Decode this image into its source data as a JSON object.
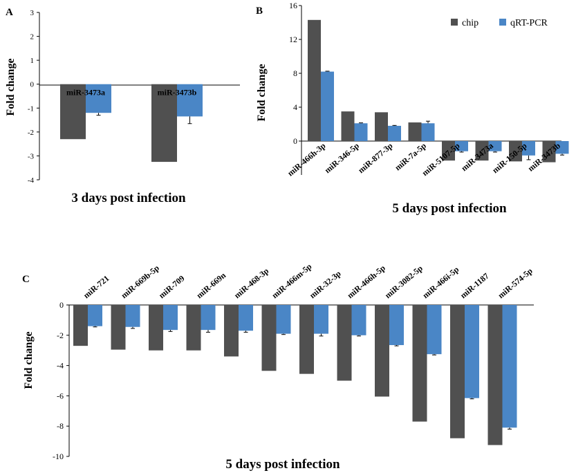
{
  "colors": {
    "chip": "#505050",
    "qrt": "#4a86c6",
    "axis": "#000000"
  },
  "chart_data": [
    {
      "panel": "A",
      "type": "bar",
      "title": "3 days post infection",
      "ylabel": "Fold change",
      "ylim": [
        -4,
        3
      ],
      "yticks": [
        3,
        2,
        1,
        0,
        -1,
        -2,
        -3,
        -4
      ],
      "categories": [
        "miR-3473a",
        "miR-3473b"
      ],
      "series": [
        {
          "name": "chip",
          "values": [
            -2.3,
            -3.25
          ]
        },
        {
          "name": "qRT-PCR",
          "values": [
            -1.2,
            -1.35
          ],
          "errors": [
            0.1,
            0.3
          ]
        }
      ]
    },
    {
      "panel": "B",
      "type": "bar",
      "title": "5 days post infection",
      "ylabel": "Fold change",
      "ylim": [
        -4,
        16
      ],
      "yticks": [
        16,
        12,
        8,
        4,
        0
      ],
      "legend": [
        "chip",
        "qRT-PCR"
      ],
      "categories": [
        "miR-466h-3p",
        "miR-346-5p",
        "miR-877-3p",
        "miR-7a-5p",
        "miR-5107-5p",
        "miR-3473a",
        "miR-150-5p",
        "miR-3473b"
      ],
      "series": [
        {
          "name": "chip",
          "values": [
            14.3,
            3.5,
            3.4,
            2.2,
            -2.3,
            -2.3,
            -2.4,
            -2.5
          ]
        },
        {
          "name": "qRT-PCR",
          "values": [
            8.2,
            2.1,
            1.8,
            2.1,
            -1.2,
            -1.2,
            -1.7,
            -1.5
          ],
          "errors": [
            0.05,
            0.05,
            0.05,
            0.25,
            0.1,
            0.1,
            0.5,
            0.15
          ]
        }
      ]
    },
    {
      "panel": "C",
      "type": "bar",
      "title": "5 days post infection",
      "ylabel": "Fold change",
      "ylim": [
        -10,
        0
      ],
      "yticks": [
        0,
        -2,
        -4,
        -6,
        -8,
        -10
      ],
      "categories": [
        "miR-721",
        "miR-669b-5p",
        "miR-709",
        "miR-669n",
        "miR-468-3p",
        "miR-466m-5p",
        "miR-32-3p",
        "miR-466h-5p",
        "miR-3082-5p",
        "miR-466i-5p",
        "miR-1187",
        "miR-574-5p"
      ],
      "series": [
        {
          "name": "chip",
          "values": [
            -2.7,
            -2.95,
            -3.0,
            -3.0,
            -3.4,
            -4.35,
            -4.55,
            -5.0,
            -6.05,
            -7.7,
            -8.8,
            -9.25
          ]
        },
        {
          "name": "qRT-PCR",
          "values": [
            -1.4,
            -1.45,
            -1.65,
            -1.65,
            -1.7,
            -1.9,
            -1.9,
            -2.0,
            -2.65,
            -3.25,
            -6.15,
            -8.1
          ],
          "errors": [
            0.05,
            0.1,
            0.1,
            0.15,
            0.1,
            0.05,
            0.15,
            0.05,
            0.05,
            0.05,
            0.05,
            0.1
          ]
        }
      ]
    }
  ]
}
